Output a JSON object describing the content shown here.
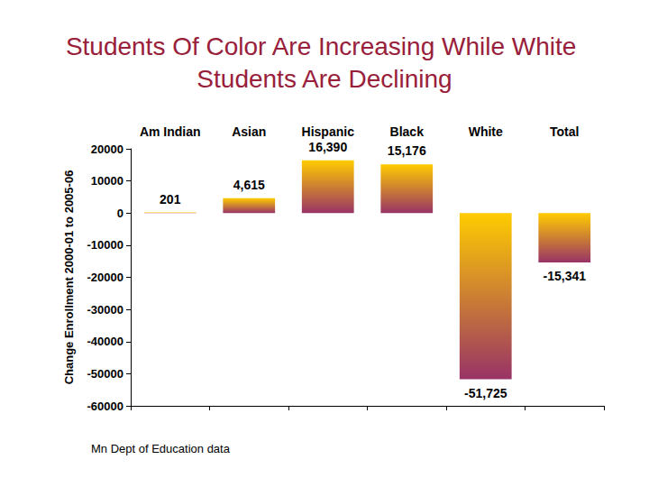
{
  "chart_data": {
    "type": "bar",
    "title": "Students Of Color Are Increasing While White Students Are Declining",
    "ylabel": "Change Enrollment 2000-01 to 2005-06",
    "source": "Mn Dept of Education data",
    "categories": [
      "Am Indian",
      "Asian",
      "Hispanic",
      "Black",
      "White",
      "Total"
    ],
    "values": [
      201,
      4615,
      16390,
      15176,
      -51725,
      -15341
    ],
    "value_labels": [
      "201",
      "4,615",
      "16,390",
      "15,176",
      "-51,725",
      "-15,341"
    ],
    "color": "#ffcc00",
    "ylim": [
      -60000,
      20000
    ],
    "yticks": [
      -60000,
      -50000,
      -40000,
      -30000,
      -20000,
      -10000,
      0,
      10000,
      20000
    ],
    "grid": false,
    "data_labels": true
  }
}
